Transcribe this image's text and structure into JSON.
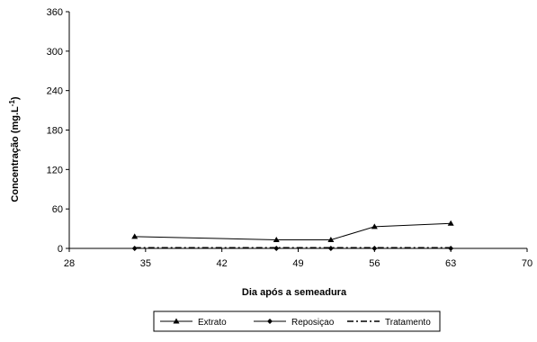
{
  "chart_data": {
    "type": "line",
    "xlabel": "Dia após a semeadura",
    "ylabel_main": "Concentração (mg.L",
    "ylabel_sup": "-1",
    "ylabel_close": ")",
    "xlim": [
      28,
      70
    ],
    "ylim": [
      0,
      360
    ],
    "xticks": [
      28,
      35,
      42,
      49,
      56,
      63,
      70
    ],
    "yticks": [
      0,
      60,
      120,
      180,
      240,
      300,
      360
    ],
    "grid": false,
    "legend_position": "bottom-center",
    "series": [
      {
        "name": "Extrato",
        "marker": "triangle",
        "line_style": "solid",
        "color": "#000000",
        "x": [
          34,
          47,
          52,
          56,
          63
        ],
        "y": [
          18,
          13,
          13,
          33,
          38
        ]
      },
      {
        "name": "Reposiçao",
        "marker": "diamond",
        "line_style": "solid",
        "color": "#000000",
        "x": [
          34,
          47,
          52,
          56,
          63
        ],
        "y": [
          0,
          0,
          0,
          0,
          0
        ]
      },
      {
        "name": "Tratamento",
        "marker": "none",
        "line_style": "dash-dot",
        "color": "#000000",
        "x": [
          34,
          47,
          52,
          56,
          63
        ],
        "y": [
          1,
          1,
          1,
          1,
          1
        ]
      }
    ]
  }
}
